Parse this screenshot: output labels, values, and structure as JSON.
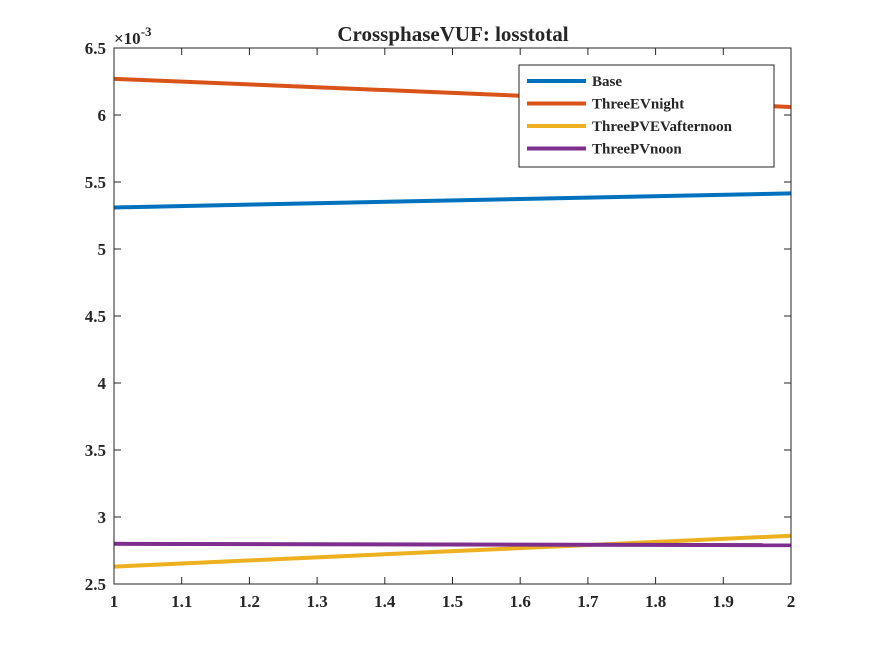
{
  "chart_data": {
    "type": "line",
    "title": "CrossphaseVUF: losstotal",
    "exponent_label": "×10",
    "exponent_power": "-3",
    "xlabel": "",
    "ylabel": "",
    "xlim": [
      1,
      2
    ],
    "ylim": [
      2.5,
      6.5
    ],
    "xticks": [
      1,
      1.1,
      1.2,
      1.3,
      1.4,
      1.5,
      1.6,
      1.7,
      1.8,
      1.9,
      2
    ],
    "xtick_labels": [
      "1",
      "1.1",
      "1.2",
      "1.3",
      "1.4",
      "1.5",
      "1.6",
      "1.7",
      "1.8",
      "1.9",
      "2"
    ],
    "yticks": [
      2.5,
      3,
      3.5,
      4,
      4.5,
      5,
      5.5,
      6,
      6.5
    ],
    "ytick_labels": [
      "2.5",
      "3",
      "3.5",
      "4",
      "4.5",
      "5",
      "5.5",
      "6",
      "6.5"
    ],
    "grid": false,
    "legend_position": "top-right",
    "x": [
      1,
      2
    ],
    "series": [
      {
        "name": "Base",
        "color": "#0072BD",
        "values": [
          5.31,
          5.415
        ]
      },
      {
        "name": "ThreeEVnight",
        "color": "#D95319",
        "values": [
          6.27,
          6.06
        ]
      },
      {
        "name": "ThreePVEVafternoon",
        "color": "#EDB120",
        "values": [
          2.63,
          2.86
        ]
      },
      {
        "name": "ThreePVnoon",
        "color": "#7E2F8E",
        "values": [
          2.8,
          2.79
        ]
      }
    ]
  }
}
